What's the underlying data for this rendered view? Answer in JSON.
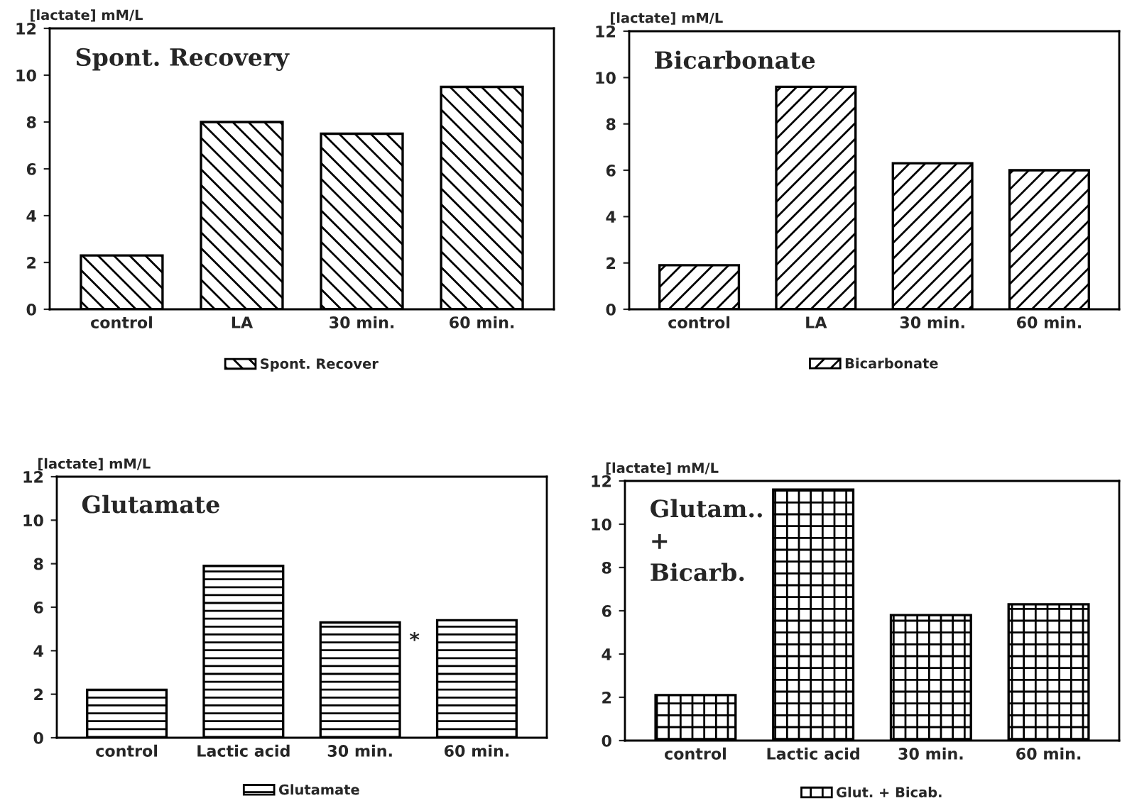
{
  "chart_data": [
    {
      "type": "bar",
      "title": "Spont. Recovery",
      "ylabel": "[lactate] mM/L",
      "categories": [
        "control",
        "LA",
        "30 min.",
        "60 min."
      ],
      "series": [
        {
          "name": "Spont. Recover",
          "color": "#000000",
          "values": [
            2.3,
            8.0,
            7.5,
            9.5
          ]
        }
      ],
      "ylim": [
        0,
        12
      ],
      "yticks": [
        0,
        2,
        4,
        6,
        8,
        10,
        12
      ],
      "legend": "bottom",
      "grid": false
    },
    {
      "type": "bar",
      "title": "Bicarbonate",
      "ylabel": "[lactate] mM/L",
      "categories": [
        "control",
        "LA",
        "30 min.",
        "60 min."
      ],
      "series": [
        {
          "name": "Bicarbonate",
          "color": "#000000",
          "values": [
            1.9,
            9.6,
            6.3,
            6.0
          ]
        }
      ],
      "ylim": [
        0,
        12
      ],
      "yticks": [
        0,
        2,
        4,
        6,
        8,
        10,
        12
      ],
      "legend": "bottom",
      "grid": false
    },
    {
      "type": "bar",
      "title": "Glutamate",
      "ylabel": "[lactate] mM/L",
      "categories": [
        "control",
        "Lactic acid",
        "30 min.",
        "60 min."
      ],
      "series": [
        {
          "name": "Glutamate",
          "color": "#000000",
          "values": [
            2.2,
            7.9,
            5.3,
            5.4
          ]
        }
      ],
      "ylim": [
        0,
        12
      ],
      "yticks": [
        0,
        2,
        4,
        6,
        8,
        10,
        12
      ],
      "legend": "bottom",
      "grid": false,
      "annotations": [
        "*"
      ]
    },
    {
      "type": "bar",
      "title": "Glutam..\n+\nBicarb.",
      "ylabel": "[lactate] mM/L",
      "categories": [
        "control",
        "Lactic acid",
        "30 min.",
        "60 min."
      ],
      "series": [
        {
          "name": "Glut. + Bicab.",
          "color": "#000000",
          "values": [
            2.1,
            11.6,
            5.8,
            6.3
          ]
        }
      ],
      "ylim": [
        0,
        12
      ],
      "yticks": [
        0,
        2,
        4,
        6,
        8,
        10,
        12
      ],
      "legend": "bottom",
      "grid": false
    }
  ]
}
